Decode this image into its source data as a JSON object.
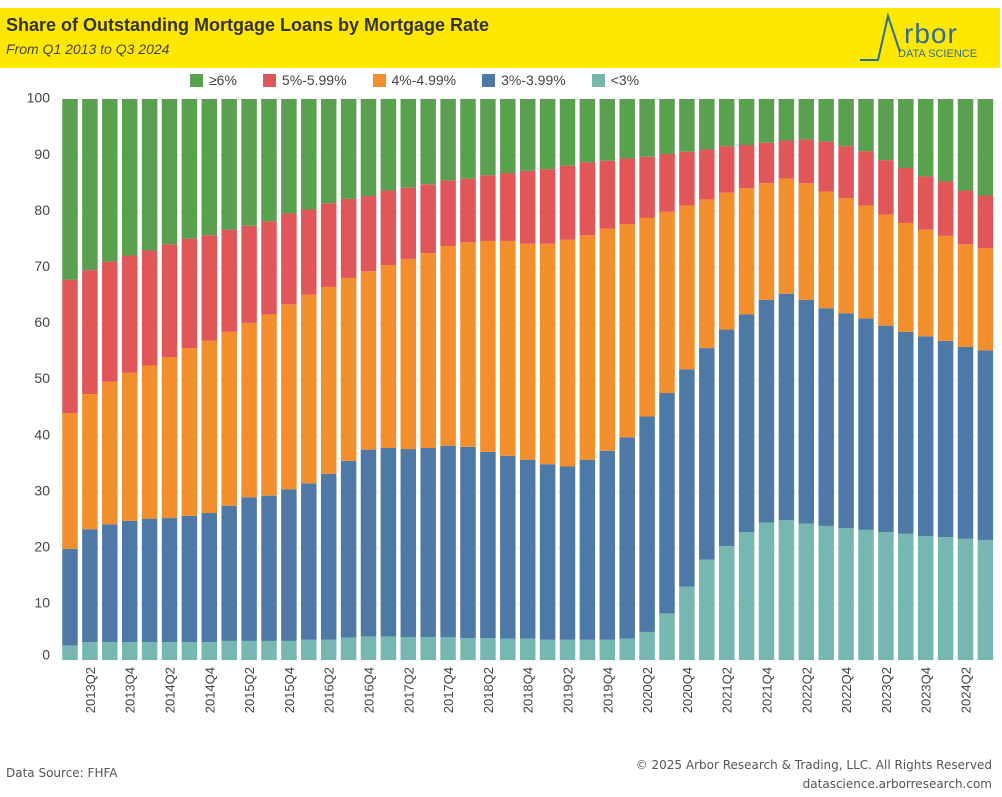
{
  "header": {
    "title": "Share of Outstanding Mortgage Loans by Mortgage Rate",
    "subtitle": "From Q1 2013 to Q3 2024",
    "logo_text": "Arbor",
    "logo_subtext": "DATA SCIENCE",
    "background_color": "#FFE800"
  },
  "footer": {
    "source": "Data Source: FHFA",
    "copyright": "© 2025 Arbor Research & Trading, LLC. All Rights Reserved",
    "website": "datascience.arborresearch.com"
  },
  "chart_data": {
    "type": "bar",
    "stacked": true,
    "title": "Share of Outstanding Mortgage Loans by Mortgage Rate",
    "subtitle": "From Q1 2013 to Q3 2024",
    "xlabel": "",
    "ylabel": "",
    "ylim": [
      0,
      100
    ],
    "yticks": [
      0,
      10,
      20,
      30,
      40,
      50,
      60,
      70,
      80,
      90,
      100
    ],
    "grid": true,
    "legend_position": "top",
    "categories": [
      "2013Q1",
      "2013Q2",
      "2013Q3",
      "2013Q4",
      "2014Q1",
      "2014Q2",
      "2014Q3",
      "2014Q4",
      "2015Q1",
      "2015Q2",
      "2015Q3",
      "2015Q4",
      "2016Q1",
      "2016Q2",
      "2016Q3",
      "2016Q4",
      "2017Q1",
      "2017Q2",
      "2017Q3",
      "2017Q4",
      "2018Q1",
      "2018Q2",
      "2018Q3",
      "2018Q4",
      "2019Q1",
      "2019Q2",
      "2019Q3",
      "2019Q4",
      "2020Q1",
      "2020Q2",
      "2020Q3",
      "2020Q4",
      "2021Q1",
      "2021Q2",
      "2021Q3",
      "2021Q4",
      "2022Q1",
      "2022Q2",
      "2022Q3",
      "2022Q4",
      "2023Q1",
      "2023Q2",
      "2023Q3",
      "2023Q4",
      "2024Q1",
      "2024Q2",
      "2024Q3"
    ],
    "xtick_labels": [
      "2013Q2",
      "2013Q4",
      "2014Q2",
      "2014Q4",
      "2015Q2",
      "2015Q4",
      "2016Q2",
      "2016Q4",
      "2017Q2",
      "2017Q4",
      "2018Q2",
      "2018Q4",
      "2019Q2",
      "2019Q4",
      "2020Q2",
      "2020Q4",
      "2021Q2",
      "2021Q4",
      "2022Q2",
      "2022Q4",
      "2023Q2",
      "2023Q4",
      "2024Q2"
    ],
    "series": [
      {
        "name": "<3%",
        "color": "#76B7B2",
        "values": [
          2.6,
          3.2,
          3.2,
          3.2,
          3.2,
          3.2,
          3.2,
          3.2,
          3.4,
          3.4,
          3.4,
          3.4,
          3.6,
          3.6,
          4.0,
          4.2,
          4.2,
          4.1,
          4.1,
          4.1,
          3.9,
          3.9,
          3.8,
          3.8,
          3.6,
          3.6,
          3.6,
          3.6,
          3.8,
          5.0,
          8.3,
          13.1,
          17.9,
          20.3,
          22.8,
          24.5,
          24.9,
          24.3,
          23.9,
          23.5,
          23.2,
          22.8,
          22.5,
          22.1,
          21.9,
          21.6,
          21.4
        ]
      },
      {
        "name": "3%-3.99%",
        "color": "#4E79A7",
        "values": [
          17.2,
          20.1,
          21.0,
          21.6,
          22.0,
          22.1,
          22.5,
          23.0,
          24.1,
          25.6,
          25.9,
          27.0,
          27.9,
          29.6,
          31.5,
          33.3,
          33.6,
          33.5,
          33.7,
          34.1,
          34.1,
          33.2,
          32.6,
          31.9,
          31.3,
          30.9,
          32.1,
          33.7,
          35.9,
          38.4,
          39.3,
          38.7,
          37.7,
          38.6,
          38.8,
          39.7,
          40.4,
          39.9,
          38.8,
          38.3,
          37.7,
          36.8,
          36.0,
          35.6,
          35.0,
          34.2,
          33.8
        ]
      },
      {
        "name": "4%-4.99%",
        "color": "#F28E2B",
        "values": [
          24.2,
          24.1,
          25.4,
          26.4,
          27.3,
          28.7,
          29.9,
          30.7,
          31.0,
          31.1,
          32.3,
          33.0,
          33.6,
          33.3,
          32.6,
          31.8,
          32.6,
          33.9,
          34.7,
          35.6,
          36.5,
          37.6,
          38.3,
          38.5,
          39.3,
          40.4,
          40.0,
          39.6,
          38.0,
          35.4,
          32.3,
          29.2,
          26.5,
          24.4,
          22.5,
          20.8,
          20.5,
          20.8,
          20.8,
          20.5,
          20.1,
          19.8,
          19.4,
          19.0,
          18.7,
          18.3,
          18.2
        ]
      },
      {
        "name": "5%-5.99%",
        "color": "#E15759",
        "values": [
          23.8,
          22.1,
          21.4,
          20.9,
          20.5,
          20.1,
          19.5,
          18.8,
          18.2,
          17.3,
          16.6,
          16.2,
          15.2,
          14.9,
          14.1,
          13.4,
          13.3,
          12.7,
          12.3,
          11.7,
          11.3,
          11.7,
          12.1,
          13.0,
          13.3,
          13.2,
          13.0,
          12.1,
          11.7,
          10.9,
          10.3,
          9.6,
          8.9,
          8.3,
          7.7,
          7.2,
          6.8,
          7.8,
          8.9,
          9.3,
          9.7,
          9.7,
          9.8,
          9.5,
          9.7,
          9.6,
          9.4
        ]
      },
      {
        "name": "≥6%",
        "color": "#59A14F",
        "values": [
          32.2,
          30.5,
          29.0,
          27.9,
          27.0,
          25.9,
          24.9,
          24.3,
          23.3,
          22.6,
          21.8,
          20.4,
          19.7,
          18.6,
          17.8,
          17.3,
          16.3,
          15.8,
          15.2,
          14.5,
          14.2,
          13.6,
          13.2,
          12.8,
          12.5,
          11.9,
          11.3,
          11.0,
          10.6,
          10.3,
          9.8,
          9.4,
          9.0,
          8.4,
          8.2,
          7.8,
          7.4,
          7.2,
          7.6,
          8.4,
          9.3,
          10.9,
          12.3,
          13.8,
          14.7,
          16.3,
          17.2
        ]
      }
    ],
    "legend_order": [
      "≥6%",
      "5%-5.99%",
      "4%-4.99%",
      "3%-3.99%",
      "<3%"
    ]
  }
}
